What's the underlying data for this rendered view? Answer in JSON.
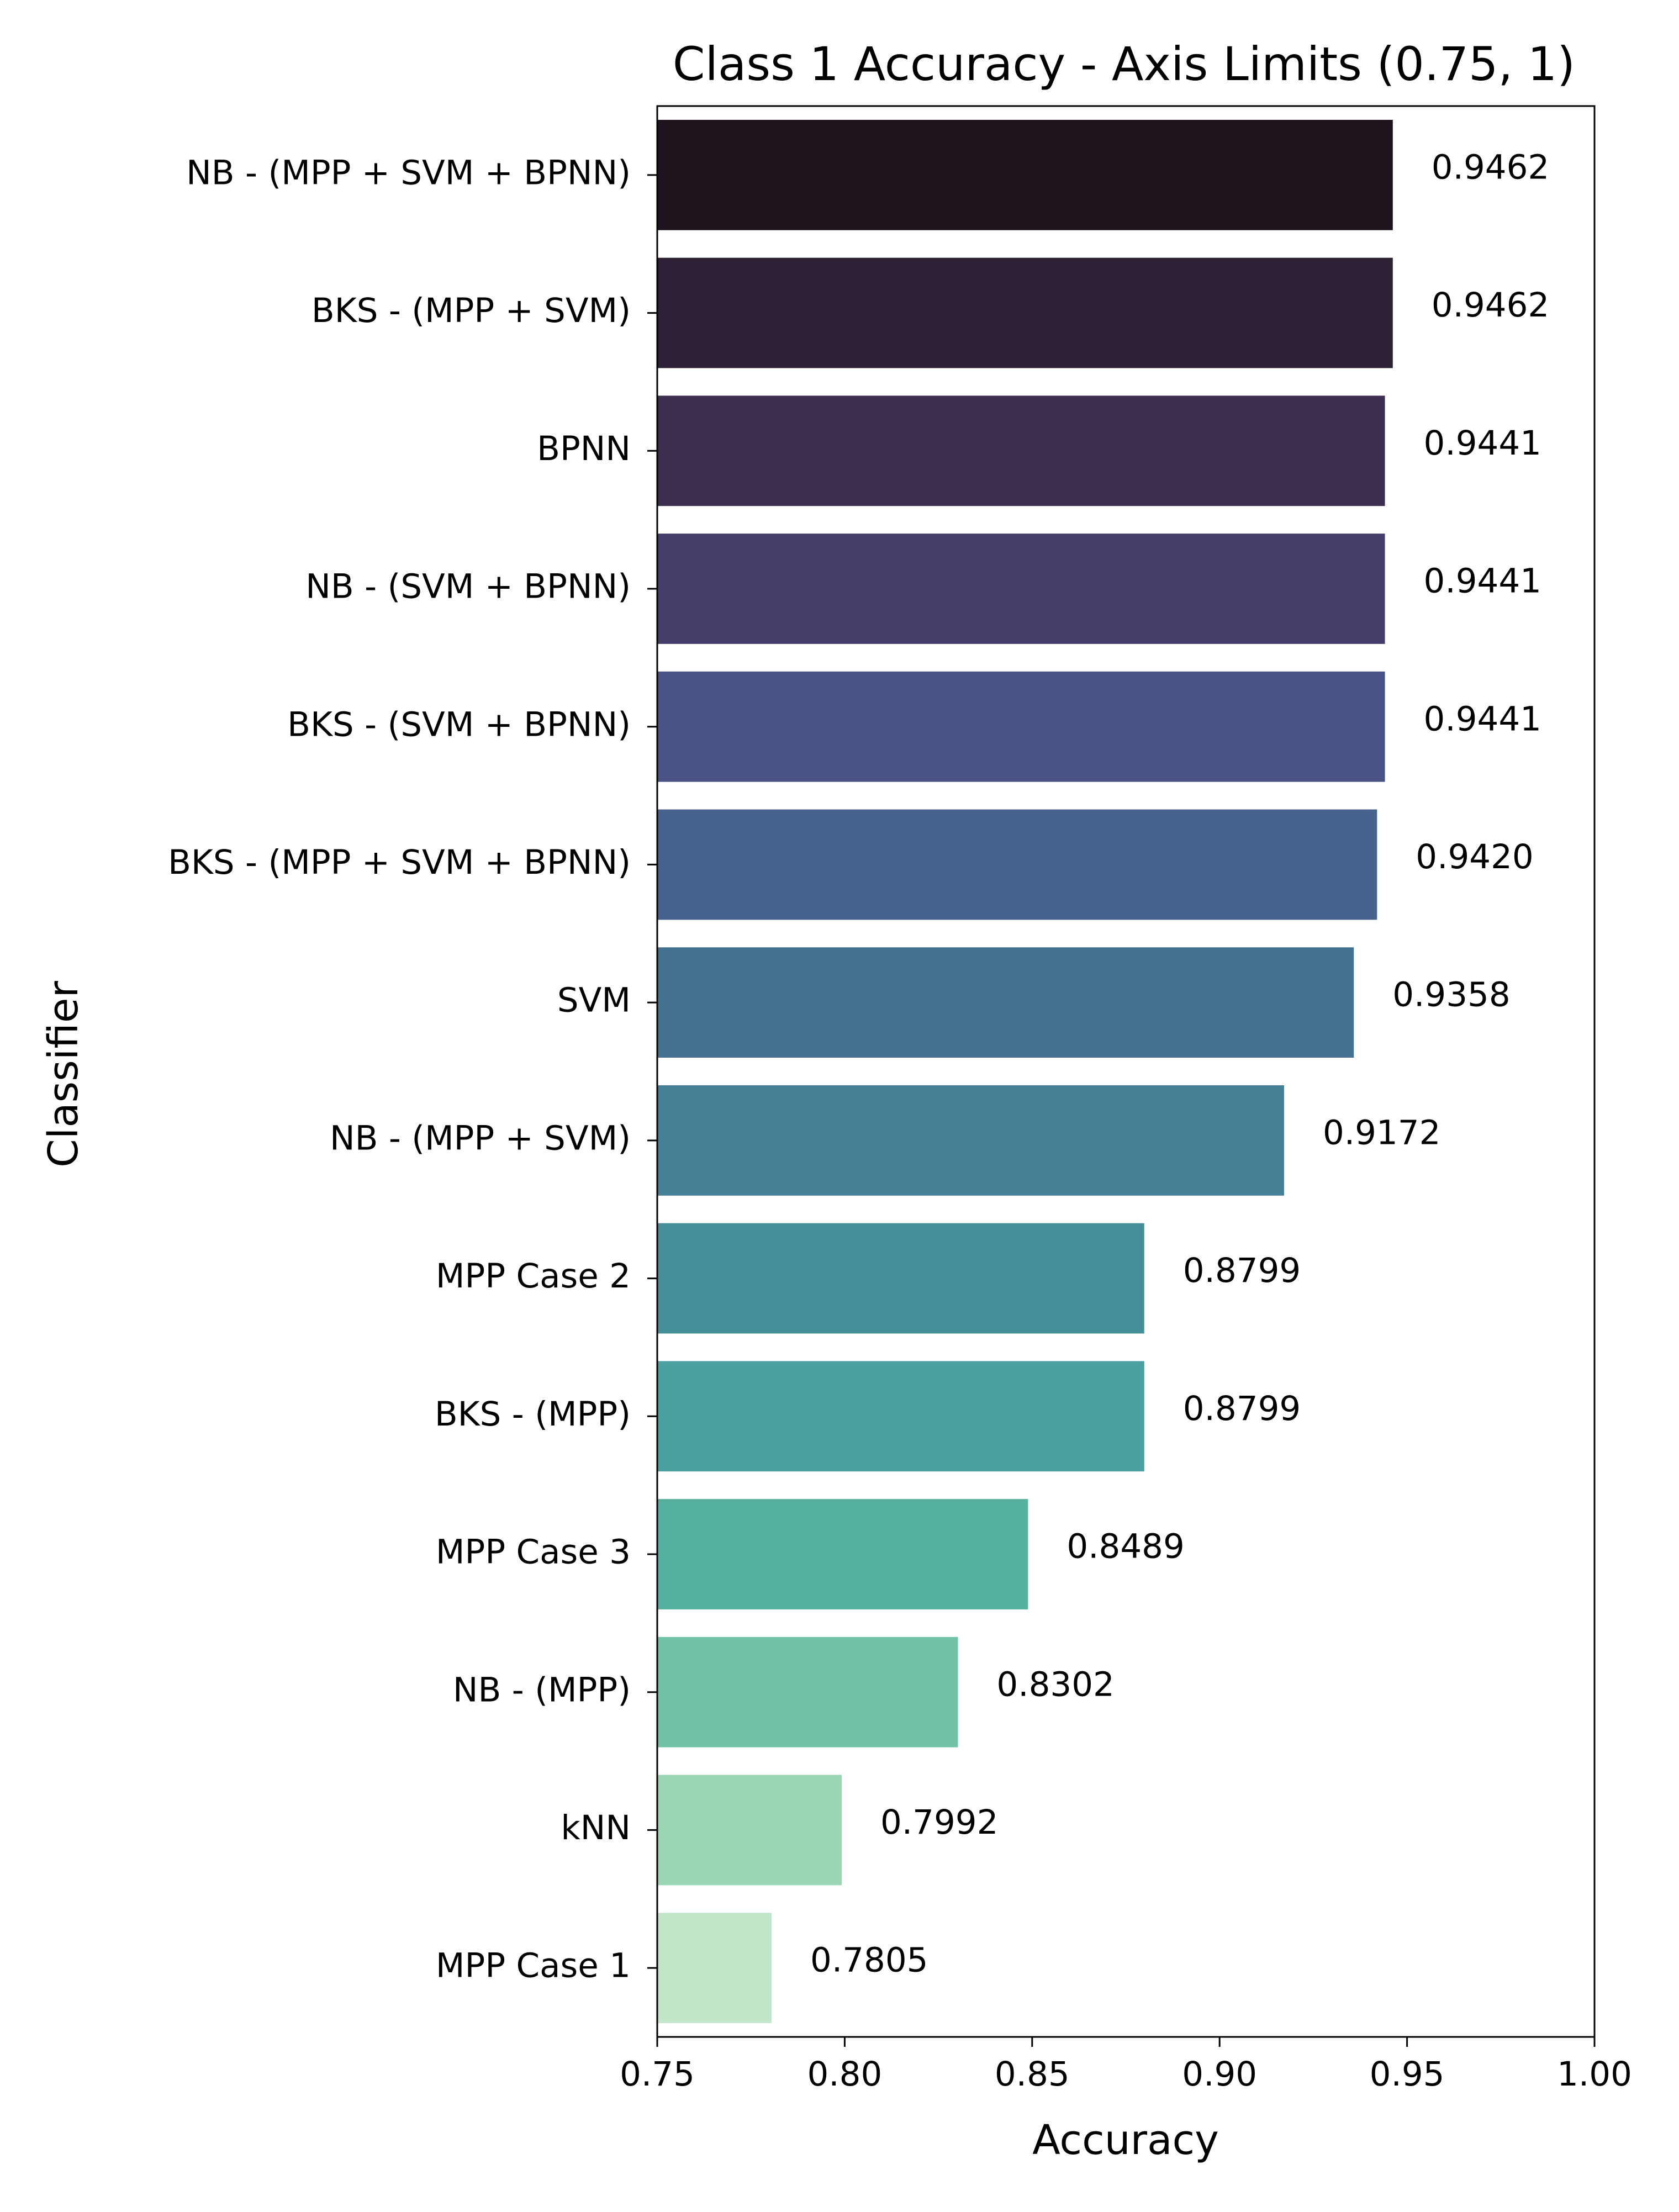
{
  "chart_data": {
    "type": "bar",
    "orientation": "horizontal",
    "title": "Class 1 Accuracy - Axis Limits (0.75, 1)",
    "xlabel": "Accuracy",
    "ylabel": "Classifier",
    "xlim": [
      0.75,
      1.0
    ],
    "xticks": [
      "0.75",
      "0.80",
      "0.85",
      "0.90",
      "0.95",
      "1.00"
    ],
    "grid": false,
    "legend": "none",
    "categories": [
      "NB - (MPP + SVM + BPNN)",
      "BKS - (MPP + SVM)",
      "BPNN",
      "NB - (SVM + BPNN)",
      "BKS - (SVM + BPNN)",
      "BKS - (MPP + SVM + BPNN)",
      "SVM",
      "NB - (MPP + SVM)",
      "MPP Case 2",
      "BKS - (MPP)",
      "MPP Case 3",
      "NB - (MPP)",
      "kNN",
      "MPP Case 1"
    ],
    "values": [
      0.9462,
      0.9462,
      0.9441,
      0.9441,
      0.9441,
      0.942,
      0.9358,
      0.9172,
      0.8799,
      0.8799,
      0.8489,
      0.8302,
      0.7992,
      0.7805
    ],
    "value_labels": [
      "0.9462",
      "0.9462",
      "0.9441",
      "0.9441",
      "0.9441",
      "0.9420",
      "0.9358",
      "0.9172",
      "0.8799",
      "0.8799",
      "0.8489",
      "0.8302",
      "0.7992",
      "0.7805"
    ],
    "colors": [
      "#1f141e",
      "#2d2136",
      "#3b2e4e",
      "#463c69",
      "#4a5283",
      "#46638d",
      "#44708f",
      "#468096",
      "#458f9a",
      "#4a9f9f",
      "#56b0a0",
      "#6fc2a6",
      "#9ad4b2",
      "#c3e5c9"
    ]
  }
}
